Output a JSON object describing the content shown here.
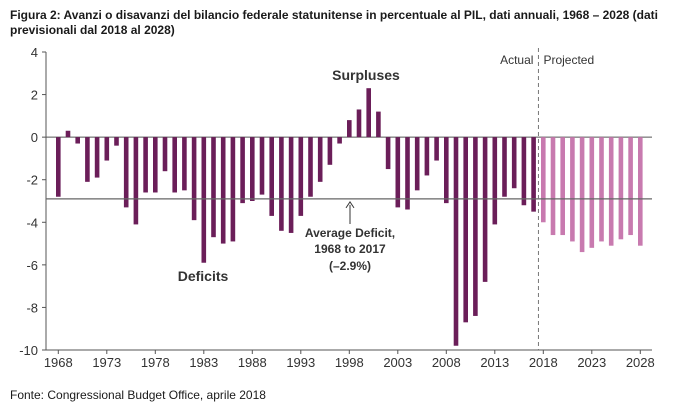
{
  "title": "Figura 2: Avanzi o disavanzi del bilancio federale statunitense in percentuale al PIL, dati annuali, 1968 – 2028 (dati previsionali dal 2018 al 2028)",
  "source": "Fonte: Congressional Budget Office, aprile 2018",
  "chart_data": {
    "type": "bar",
    "xlabel": "",
    "ylabel": "",
    "ylim": [
      -10,
      4
    ],
    "y_ticks": [
      "4",
      "2",
      "0",
      "-2",
      "-4",
      "-6",
      "-8",
      "-10"
    ],
    "x_ticks": [
      "1968",
      "1973",
      "1978",
      "1983",
      "1988",
      "1993",
      "1998",
      "2003",
      "2008",
      "2013",
      "2018",
      "2023",
      "2028"
    ],
    "grid": false,
    "colors": {
      "actual": "#6b1e59",
      "projected": "#c87aaf",
      "reference_line": "#666666"
    },
    "reference_line": {
      "value": -2.9
    },
    "divider_between": [
      2017,
      2018
    ],
    "annotations": {
      "actual": "Actual",
      "projected": "Projected",
      "surpluses": "Surpluses",
      "deficits": "Deficits",
      "average_line1": "Average Deficit,",
      "average_line2": "1968 to 2017",
      "average_line3": "(–2.9%)"
    },
    "series": [
      {
        "name": "Actual",
        "years": [
          1968,
          1969,
          1970,
          1971,
          1972,
          1973,
          1974,
          1975,
          1976,
          1977,
          1978,
          1979,
          1980,
          1981,
          1982,
          1983,
          1984,
          1985,
          1986,
          1987,
          1988,
          1989,
          1990,
          1991,
          1992,
          1993,
          1994,
          1995,
          1996,
          1997,
          1998,
          1999,
          2000,
          2001,
          2002,
          2003,
          2004,
          2005,
          2006,
          2007,
          2008,
          2009,
          2010,
          2011,
          2012,
          2013,
          2014,
          2015,
          2016,
          2017
        ],
        "values": [
          -2.8,
          0.3,
          -0.3,
          -2.1,
          -1.9,
          -1.1,
          -0.4,
          -3.3,
          -4.1,
          -2.6,
          -2.6,
          -1.6,
          -2.6,
          -2.5,
          -3.9,
          -5.9,
          -4.7,
          -5.0,
          -4.9,
          -3.1,
          -3.0,
          -2.7,
          -3.7,
          -4.4,
          -4.5,
          -3.7,
          -2.8,
          -2.1,
          -1.3,
          -0.3,
          0.8,
          1.3,
          2.3,
          1.2,
          -1.5,
          -3.3,
          -3.4,
          -2.5,
          -1.8,
          -1.1,
          -3.1,
          -9.8,
          -8.7,
          -8.4,
          -6.8,
          -4.1,
          -2.8,
          -2.4,
          -3.2,
          -3.5
        ]
      },
      {
        "name": "Projected",
        "years": [
          2018,
          2019,
          2020,
          2021,
          2022,
          2023,
          2024,
          2025,
          2026,
          2027,
          2028
        ],
        "values": [
          -4.0,
          -4.6,
          -4.6,
          -4.9,
          -5.4,
          -5.2,
          -4.9,
          -5.1,
          -4.8,
          -4.6,
          -5.1
        ]
      }
    ]
  }
}
